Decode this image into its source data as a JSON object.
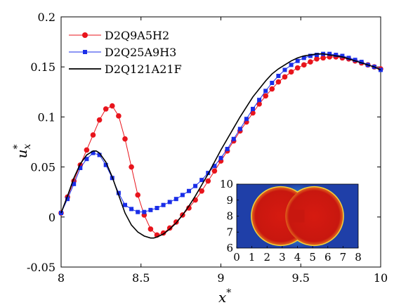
{
  "chart_data": [
    {
      "type": "line",
      "xlabel": "x*",
      "ylabel": "u*x",
      "xlim": [
        8,
        10
      ],
      "ylim": [
        -0.05,
        0.2
      ],
      "x_ticks": [
        "8",
        "8.5",
        "9",
        "9.5",
        "10"
      ],
      "y_ticks": [
        "-0.05",
        "0",
        "0.05",
        "0.1",
        "0.15",
        "0.2"
      ],
      "grid": false,
      "legend_position": "top-left",
      "series": [
        {
          "name": "D2Q9A5H2",
          "color": "#e8141c",
          "marker": "circle",
          "x": [
            8.0,
            8.04,
            8.08,
            8.12,
            8.16,
            8.2,
            8.24,
            8.28,
            8.32,
            8.36,
            8.4,
            8.44,
            8.48,
            8.52,
            8.56,
            8.6,
            8.64,
            8.68,
            8.72,
            8.76,
            8.8,
            8.84,
            8.88,
            8.92,
            8.96,
            9.0,
            9.04,
            9.08,
            9.12,
            9.16,
            9.2,
            9.24,
            9.28,
            9.32,
            9.36,
            9.4,
            9.44,
            9.48,
            9.52,
            9.56,
            9.6,
            9.64,
            9.68,
            9.72,
            9.76,
            9.8,
            9.84,
            9.88,
            9.92,
            9.96,
            10.0
          ],
          "values": [
            0.004,
            0.02,
            0.036,
            0.052,
            0.067,
            0.082,
            0.097,
            0.108,
            0.111,
            0.101,
            0.078,
            0.05,
            0.022,
            0.002,
            -0.012,
            -0.018,
            -0.016,
            -0.011,
            -0.005,
            0.002,
            0.009,
            0.017,
            0.026,
            0.036,
            0.046,
            0.056,
            0.066,
            0.076,
            0.086,
            0.095,
            0.104,
            0.113,
            0.121,
            0.128,
            0.135,
            0.14,
            0.145,
            0.149,
            0.152,
            0.155,
            0.158,
            0.159,
            0.16,
            0.16,
            0.159,
            0.158,
            0.156,
            0.154,
            0.152,
            0.15,
            0.148
          ]
        },
        {
          "name": "D2Q25A9H3",
          "color": "#1a2ee8",
          "marker": "square",
          "x": [
            8.0,
            8.04,
            8.08,
            8.12,
            8.16,
            8.2,
            8.24,
            8.28,
            8.32,
            8.36,
            8.4,
            8.44,
            8.48,
            8.52,
            8.56,
            8.6,
            8.64,
            8.68,
            8.72,
            8.76,
            8.8,
            8.84,
            8.88,
            8.92,
            8.96,
            9.0,
            9.04,
            9.08,
            9.12,
            9.16,
            9.2,
            9.24,
            9.28,
            9.32,
            9.36,
            9.4,
            9.44,
            9.48,
            9.52,
            9.56,
            9.6,
            9.64,
            9.68,
            9.72,
            9.76,
            9.8,
            9.84,
            9.88,
            9.92,
            9.96,
            10.0
          ],
          "values": [
            0.004,
            0.018,
            0.033,
            0.049,
            0.058,
            0.064,
            0.062,
            0.052,
            0.039,
            0.024,
            0.012,
            0.008,
            0.005,
            0.005,
            0.007,
            0.009,
            0.012,
            0.015,
            0.018,
            0.022,
            0.026,
            0.031,
            0.037,
            0.044,
            0.051,
            0.059,
            0.068,
            0.078,
            0.088,
            0.098,
            0.108,
            0.117,
            0.126,
            0.134,
            0.141,
            0.147,
            0.152,
            0.156,
            0.159,
            0.161,
            0.162,
            0.163,
            0.163,
            0.162,
            0.161,
            0.159,
            0.157,
            0.155,
            0.152,
            0.15,
            0.147
          ]
        },
        {
          "name": "D2Q121A21F",
          "color": "#000000",
          "marker": "none",
          "x": [
            8.0,
            8.04,
            8.08,
            8.12,
            8.16,
            8.2,
            8.22,
            8.24,
            8.28,
            8.32,
            8.36,
            8.4,
            8.44,
            8.48,
            8.52,
            8.56,
            8.58,
            8.6,
            8.64,
            8.68,
            8.72,
            8.76,
            8.8,
            8.84,
            8.88,
            8.92,
            8.96,
            9.0,
            9.04,
            9.08,
            9.12,
            9.16,
            9.2,
            9.24,
            9.28,
            9.32,
            9.36,
            9.4,
            9.44,
            9.48,
            9.52,
            9.56,
            9.6,
            9.64,
            9.68,
            9.72,
            9.76,
            9.8,
            9.84,
            9.88,
            9.92,
            9.96,
            10.0
          ],
          "values": [
            0.004,
            0.021,
            0.039,
            0.053,
            0.062,
            0.066,
            0.066,
            0.064,
            0.055,
            0.04,
            0.022,
            0.004,
            -0.008,
            -0.015,
            -0.019,
            -0.021,
            -0.021,
            -0.02,
            -0.017,
            -0.012,
            -0.006,
            0.002,
            0.011,
            0.021,
            0.032,
            0.043,
            0.055,
            0.067,
            0.078,
            0.089,
            0.1,
            0.11,
            0.12,
            0.128,
            0.136,
            0.143,
            0.148,
            0.152,
            0.156,
            0.159,
            0.161,
            0.162,
            0.163,
            0.163,
            0.162,
            0.161,
            0.16,
            0.158,
            0.156,
            0.154,
            0.152,
            0.15,
            0.147
          ]
        }
      ]
    },
    {
      "type": "heatmap",
      "xlim": [
        0,
        8
      ],
      "ylim": [
        6,
        10
      ],
      "x_ticks": [
        "0",
        "1",
        "2",
        "3",
        "4",
        "5",
        "6",
        "7",
        "8"
      ],
      "y_ticks": [
        "6",
        "7",
        "8",
        "9",
        "10"
      ],
      "colors": {
        "background": "#1f3fa8",
        "glow": "#4fd8ff",
        "core": "#c8170f",
        "rim": "#f2d23a"
      }
    }
  ]
}
